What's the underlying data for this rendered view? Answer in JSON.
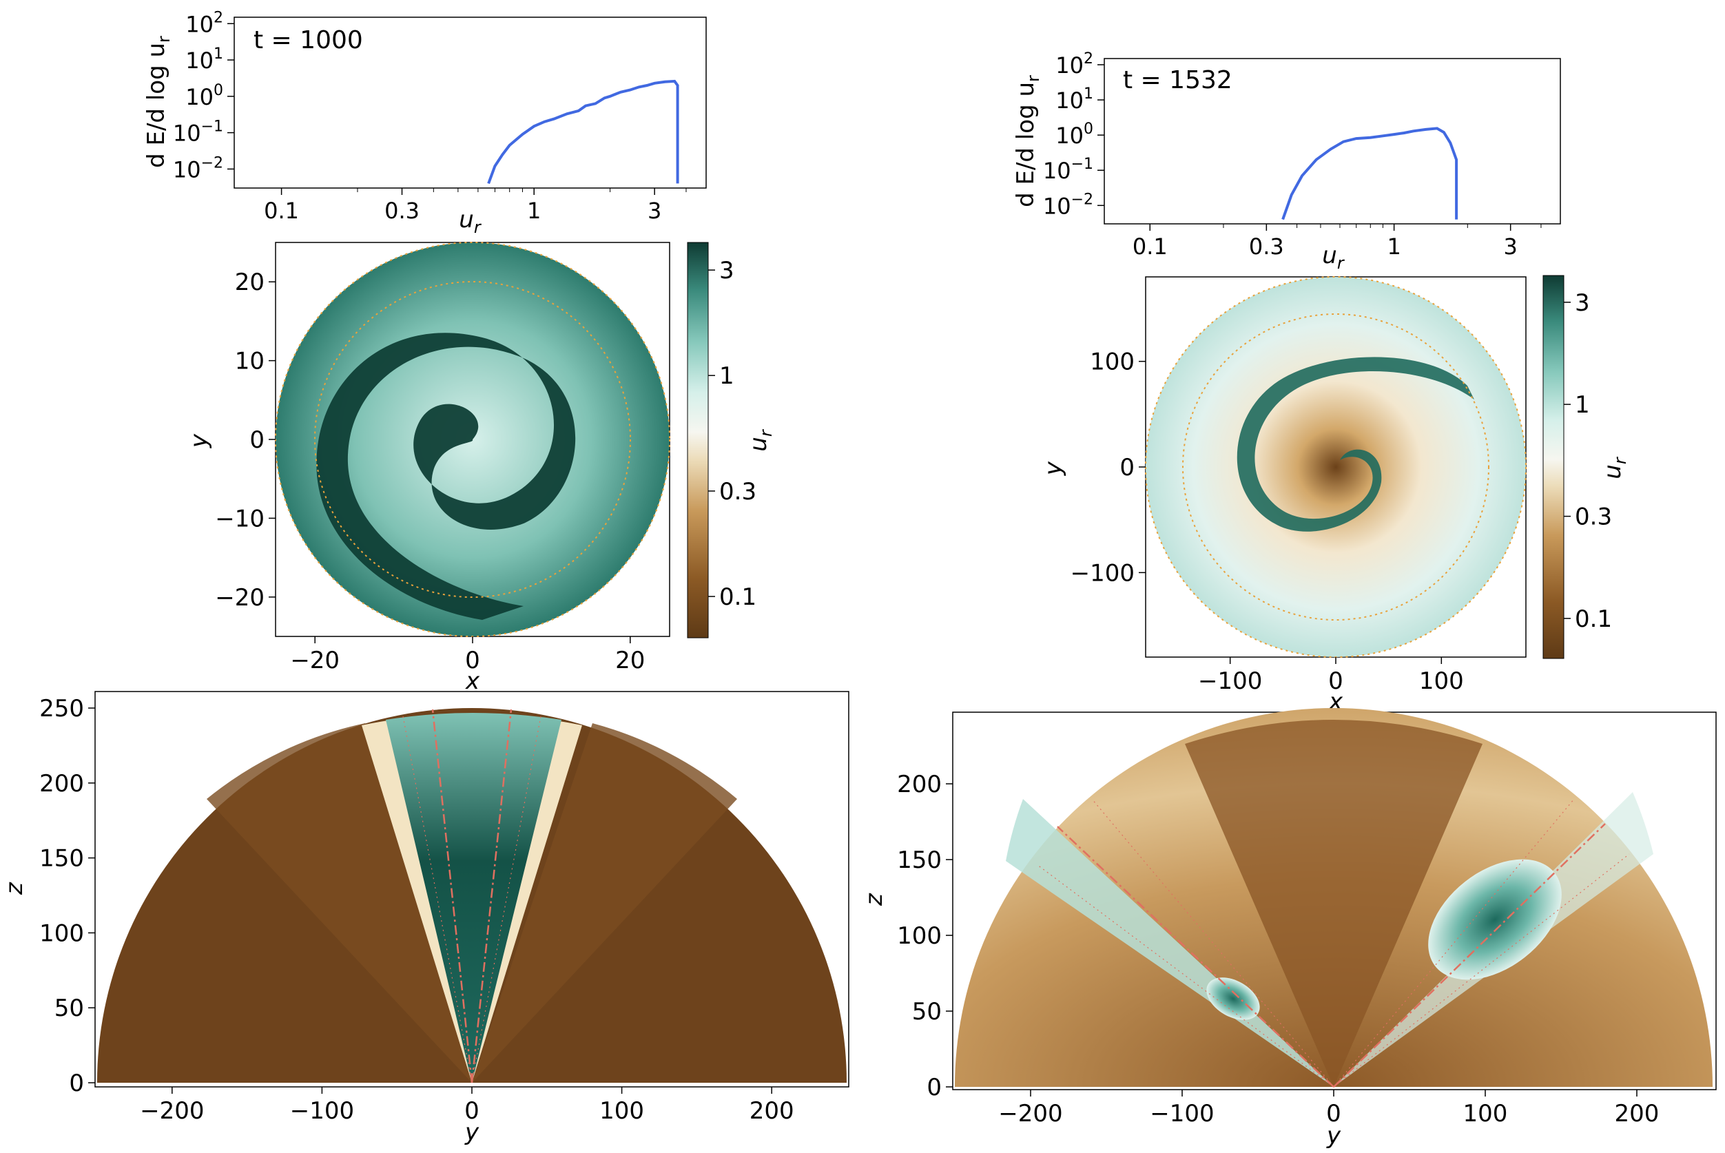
{
  "chart_data": [
    {
      "type": "line",
      "panel": "spectrum-left",
      "annotation": "t = 1000",
      "xlabel": "u_r",
      "ylabel": "d E/d log u_r",
      "xscale": "log",
      "yscale": "log",
      "xlim": [
        0.065,
        4.8
      ],
      "ylim": [
        0.003,
        150
      ],
      "xticks": [
        "0.1",
        "0.3",
        "1",
        "3"
      ],
      "yticks": [
        "10^-2",
        "10^-1",
        "10^0",
        "10^1",
        "10^2"
      ],
      "line_color": "#4169E1",
      "x": [
        0.66,
        0.7,
        0.75,
        0.8,
        0.9,
        1.0,
        1.1,
        1.2,
        1.35,
        1.5,
        1.6,
        1.75,
        1.9,
        2.0,
        2.2,
        2.4,
        2.6,
        2.8,
        3.0,
        3.3,
        3.6,
        3.7,
        3.7
      ],
      "y": [
        0.004,
        0.012,
        0.025,
        0.045,
        0.09,
        0.15,
        0.2,
        0.24,
        0.33,
        0.4,
        0.55,
        0.63,
        0.9,
        1.0,
        1.3,
        1.5,
        1.8,
        2.0,
        2.3,
        2.5,
        2.6,
        2.0,
        0.004
      ]
    },
    {
      "type": "line",
      "panel": "spectrum-right",
      "annotation": "t = 1532",
      "xlabel": "u_r",
      "ylabel": "d E/d log u_r",
      "xscale": "log",
      "yscale": "log",
      "xlim": [
        0.065,
        4.8
      ],
      "ylim": [
        0.003,
        150
      ],
      "xticks": [
        "0.1",
        "0.3",
        "1",
        "3"
      ],
      "yticks": [
        "10^-2",
        "10^-1",
        "10^0",
        "10^1",
        "10^2"
      ],
      "line_color": "#4169E1",
      "x": [
        0.35,
        0.38,
        0.42,
        0.48,
        0.55,
        0.62,
        0.7,
        0.8,
        0.9,
        1.0,
        1.1,
        1.2,
        1.35,
        1.5,
        1.6,
        1.7,
        1.8,
        1.8
      ],
      "y": [
        0.004,
        0.02,
        0.07,
        0.2,
        0.4,
        0.65,
        0.8,
        0.85,
        0.95,
        1.05,
        1.15,
        1.3,
        1.45,
        1.55,
        1.2,
        0.6,
        0.2,
        0.004
      ]
    },
    {
      "type": "heatmap",
      "panel": "spiral-left",
      "xlabel": "x",
      "ylabel": "y",
      "xlim": [
        -25,
        25
      ],
      "ylim": [
        -25,
        25
      ],
      "xticks": [
        "−20",
        "0",
        "20"
      ],
      "yticks": [
        "−20",
        "−10",
        "0",
        "10",
        "20"
      ],
      "colorbar": {
        "label": "u_r",
        "ticks": [
          "0.1",
          "0.3",
          "1",
          "3"
        ],
        "scale": "log",
        "range": [
          0.065,
          4.0
        ]
      },
      "inner_circle_radius": 20,
      "outer_circle_radius": 25
    },
    {
      "type": "heatmap",
      "panel": "spiral-right",
      "xlabel": "x",
      "ylabel": "y",
      "xlim": [
        -180,
        180
      ],
      "ylim": [
        -180,
        180
      ],
      "xticks": [
        "−100",
        "0",
        "100"
      ],
      "yticks": [
        "−100",
        "0",
        "100"
      ],
      "colorbar": {
        "label": "u_r",
        "ticks": [
          "0.1",
          "0.3",
          "1",
          "3"
        ],
        "scale": "log",
        "range": [
          0.065,
          4.0
        ]
      },
      "inner_circle_radius": 145,
      "outer_circle_radius": 180
    },
    {
      "type": "heatmap",
      "panel": "wedge-left",
      "xlabel": "y",
      "ylabel": "z",
      "xlim": [
        -250,
        250
      ],
      "ylim": [
        0,
        262
      ],
      "xticks": [
        "−200",
        "−100",
        "0",
        "100",
        "200"
      ],
      "yticks": [
        "0",
        "50",
        "100",
        "150",
        "200",
        "250"
      ],
      "outer_radius": 250,
      "jet_angles_deg": [
        -6,
        6
      ]
    },
    {
      "type": "heatmap",
      "panel": "wedge-right",
      "xlabel": "y",
      "ylabel": "z",
      "xlim": [
        -250,
        250
      ],
      "ylim": [
        0,
        250
      ],
      "xticks": [
        "−200",
        "0",
        "100",
        "200",
        "−100"
      ],
      "yticks": [
        "0",
        "50",
        "100",
        "150",
        "200"
      ],
      "outer_radius": 250,
      "jet_angles_deg": [
        -47,
        47
      ]
    }
  ],
  "labels": {
    "ur": "u",
    "ur_sub": "r",
    "x": "x",
    "y": "y",
    "z": "z",
    "ylabel_dE": "d E/d log u",
    "t_left": "t = 1000",
    "t_right": "t = 1532"
  },
  "colors": {
    "line": "#4169E1",
    "cmap_dark_teal": "#0f3f36",
    "cmap_teal": "#5aa89a",
    "cmap_light": "#d6f0ea",
    "cmap_white": "#f6f6f0",
    "cmap_tan": "#dcb87d",
    "cmap_brown": "#6b4119",
    "circle": "#e8a23c",
    "jet_line": "#e07060"
  }
}
